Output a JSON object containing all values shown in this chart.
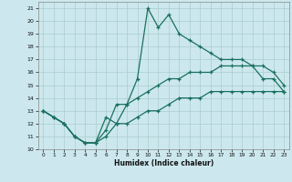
{
  "title": "",
  "xlabel": "Humidex (Indice chaleur)",
  "bg_color": "#cce8ee",
  "grid_color": "#aacccc",
  "line_color": "#1a7060",
  "xlim": [
    -0.5,
    23.5
  ],
  "ylim": [
    10,
    21.5
  ],
  "xticks": [
    0,
    1,
    2,
    3,
    4,
    5,
    6,
    7,
    8,
    9,
    10,
    11,
    12,
    13,
    14,
    15,
    16,
    17,
    18,
    19,
    20,
    21,
    22,
    23
  ],
  "yticks": [
    10,
    11,
    12,
    13,
    14,
    15,
    16,
    17,
    18,
    19,
    20,
    21
  ],
  "line1_x": [
    0,
    1,
    2,
    3,
    4,
    5,
    6,
    7,
    8,
    9,
    10,
    11,
    12,
    13,
    14,
    15,
    16,
    17,
    18,
    19,
    20,
    21,
    22,
    23
  ],
  "line1_y": [
    13,
    12.5,
    12,
    11,
    10.5,
    10.5,
    12.5,
    12,
    13.5,
    15.5,
    21,
    19.5,
    20.5,
    19,
    18.5,
    18,
    17.5,
    17,
    17,
    17,
    16.5,
    15.5,
    15.5,
    14.5
  ],
  "line2_x": [
    0,
    1,
    2,
    3,
    4,
    5,
    6,
    7,
    8,
    9,
    10,
    11,
    12,
    13,
    14,
    15,
    16,
    17,
    18,
    19,
    20,
    21,
    22,
    23
  ],
  "line2_y": [
    13,
    12.5,
    12,
    11,
    10.5,
    10.5,
    11.5,
    13.5,
    13.5,
    14,
    14.5,
    15,
    15.5,
    15.5,
    16,
    16,
    16,
    16.5,
    16.5,
    16.5,
    16.5,
    16.5,
    16,
    15
  ],
  "line3_x": [
    0,
    1,
    2,
    3,
    4,
    5,
    6,
    7,
    8,
    9,
    10,
    11,
    12,
    13,
    14,
    15,
    16,
    17,
    18,
    19,
    20,
    21,
    22,
    23
  ],
  "line3_y": [
    13,
    12.5,
    12,
    11,
    10.5,
    10.5,
    11,
    12,
    12,
    12.5,
    13,
    13,
    13.5,
    14,
    14,
    14,
    14.5,
    14.5,
    14.5,
    14.5,
    14.5,
    14.5,
    14.5,
    14.5
  ]
}
